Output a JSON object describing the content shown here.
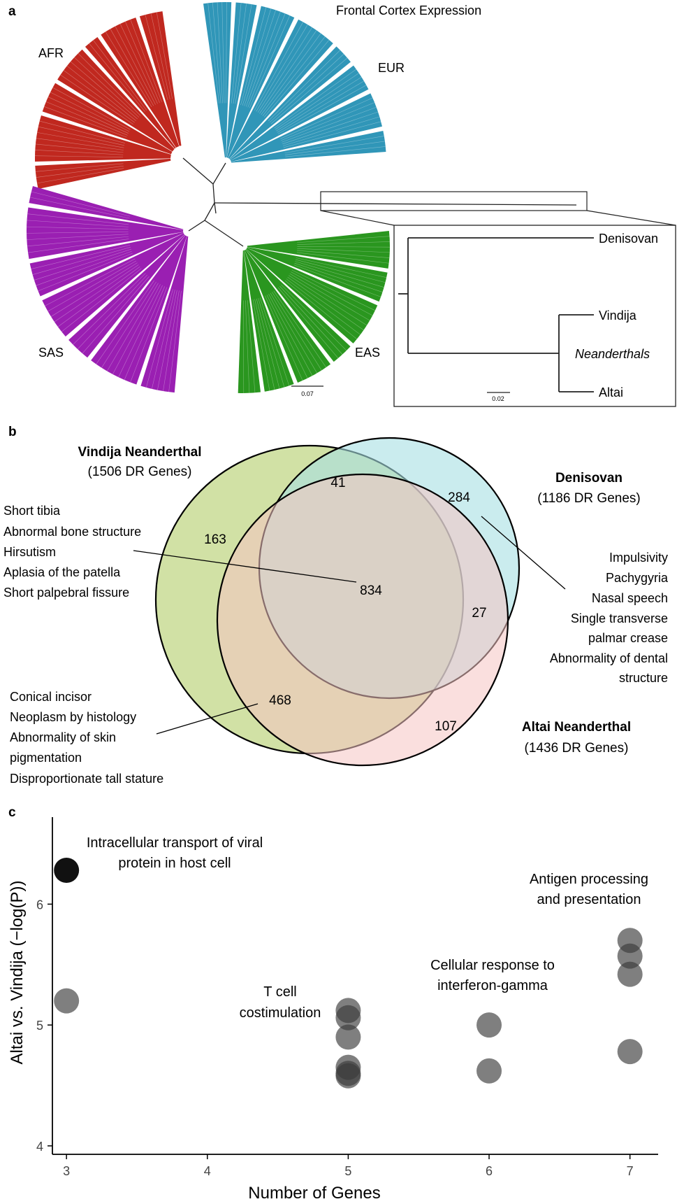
{
  "panels": {
    "a": "a",
    "b": "b",
    "c": "c"
  },
  "panel_a": {
    "title": "Frontal Cortex Expression",
    "groups": [
      {
        "name": "AFR",
        "color": "#c0281f"
      },
      {
        "name": "EUR",
        "color": "#3096b8"
      },
      {
        "name": "SAS",
        "color": "#9a1fb2"
      },
      {
        "name": "EAS",
        "color": "#2a961f"
      }
    ],
    "scale_bar": "0.07",
    "inset": {
      "tips": [
        "Denisovan",
        "Vindija",
        "Altai"
      ],
      "clade_label": "Neanderthals",
      "scale_bar": "0.02"
    }
  },
  "panel_b": {
    "sets": [
      {
        "name": "Vindija Neanderthal",
        "sub": "(1506 DR Genes)",
        "color": "#c5da8e"
      },
      {
        "name": "Denisovan",
        "sub": "(1186 DR Genes)",
        "color": "#a6e0e2"
      },
      {
        "name": "Altai Neanderthal",
        "sub": "(1436 DR Genes)",
        "color": "#f6c4c2"
      }
    ],
    "counts": {
      "vindija_only": "163",
      "vindija_denisovan": "41",
      "denisovan_only": "284",
      "all_three": "834",
      "denisovan_altai": "27",
      "vindija_altai": "468",
      "altai_only": "107"
    },
    "annotations_834": [
      "Short tibia",
      "Abnormal bone structure",
      "Hirsutism",
      "Aplasia of the patella",
      "Short palpebral fissure"
    ],
    "annotations_284": [
      "Impulsivity",
      "Pachygyria",
      "Nasal speech",
      "Single transverse",
      "palmar crease",
      "Abnormality of dental",
      "structure"
    ],
    "annotations_468": [
      "Conical incisor",
      "Neoplasm by histology",
      "Abnormality of skin",
      "pigmentation",
      "Disproportionate tall stature"
    ]
  },
  "chart_data": {
    "type": "scatter",
    "xlabel": "Number of Genes",
    "ylabel": "Altai vs. Vindija (−log(P))",
    "xlim": [
      2.9,
      7.2
    ],
    "ylim": [
      3.93,
      6.72
    ],
    "x_ticks": [
      "3",
      "4",
      "5",
      "6",
      "7"
    ],
    "y_ticks": [
      "4",
      "5",
      "6"
    ],
    "points": [
      {
        "x": 3,
        "y": 6.28,
        "highlight": true
      },
      {
        "x": 3,
        "y": 5.2
      },
      {
        "x": 5,
        "y": 5.12
      },
      {
        "x": 5,
        "y": 5.06
      },
      {
        "x": 5,
        "y": 4.9
      },
      {
        "x": 5,
        "y": 4.65
      },
      {
        "x": 5,
        "y": 4.6
      },
      {
        "x": 5,
        "y": 4.58
      },
      {
        "x": 6,
        "y": 5.0
      },
      {
        "x": 6,
        "y": 4.62
      },
      {
        "x": 7,
        "y": 5.7
      },
      {
        "x": 7,
        "y": 5.57
      },
      {
        "x": 7,
        "y": 5.42
      },
      {
        "x": 7,
        "y": 4.78
      }
    ],
    "annotations": [
      {
        "lines": [
          "Intracellular transport of viral",
          "protein in host cell"
        ]
      },
      {
        "lines": [
          "T cell",
          "costimulation"
        ]
      },
      {
        "lines": [
          "Cellular response to",
          "interferon-gamma"
        ]
      },
      {
        "lines": [
          "Antigen processing",
          "and presentation"
        ]
      }
    ]
  }
}
